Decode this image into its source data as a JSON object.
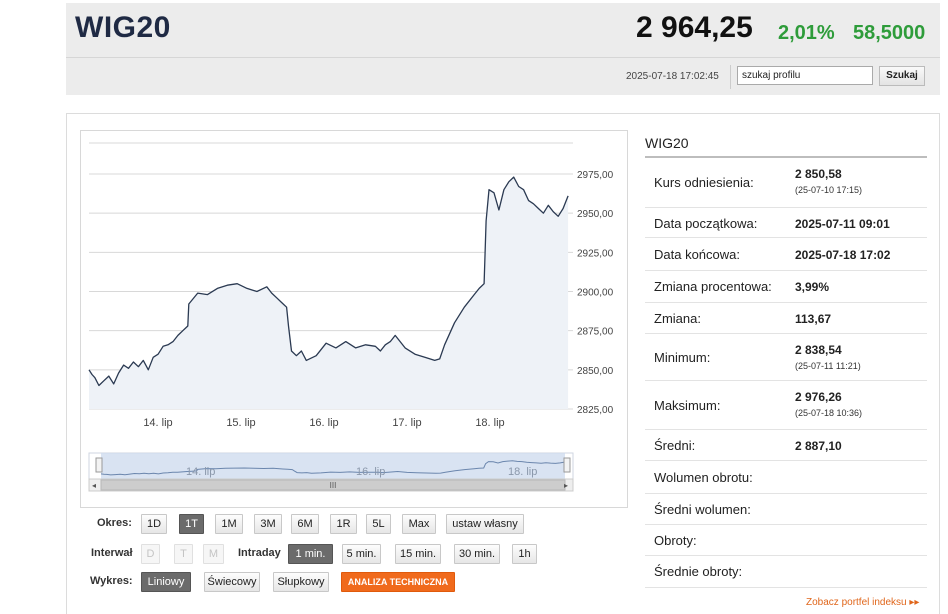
{
  "header": {
    "title": "WIG20",
    "price": "2 964,25",
    "change_pct": "2,01%",
    "change_abs": "58,5000",
    "timestamp": "2025-07-18 17:02:45",
    "search_value": "szukaj profilu",
    "search_button": "Szukaj",
    "change_color": "#2e9c3a"
  },
  "chart_data": {
    "type": "line",
    "title": "",
    "xlabel": "",
    "ylabel": "",
    "x_ticks": [
      "14. lip",
      "15. lip",
      "16. lip",
      "17. lip",
      "18. lip"
    ],
    "y_ticks": [
      "2975,00",
      "2950,00",
      "2925,00",
      "2900,00",
      "2875,00",
      "2850,00",
      "2825,00"
    ],
    "ylim": [
      2825,
      2975
    ],
    "grid": true,
    "series": [
      {
        "x": [
          0,
          0.03,
          0.06,
          0.1,
          0.15,
          0.2,
          0.25,
          0.3,
          0.35,
          0.4,
          0.45,
          0.5,
          0.55,
          0.6,
          0.65,
          0.7,
          0.75,
          0.8,
          0.85,
          0.9,
          0.95,
          1.0,
          1.01,
          1.1,
          1.2,
          1.3,
          1.4,
          1.5,
          1.6,
          1.7,
          1.8,
          1.85,
          1.9,
          1.95,
          2.0,
          2.02,
          2.05,
          2.1,
          2.15,
          2.2,
          2.3,
          2.4,
          2.5,
          2.6,
          2.7,
          2.8,
          2.9,
          2.95,
          3.0,
          3.05,
          3.1,
          3.2,
          3.3,
          3.4,
          3.5,
          3.55,
          3.6,
          3.7,
          3.8,
          3.9,
          3.95,
          4.0,
          4.02,
          4.05,
          4.1,
          4.15,
          4.2,
          4.25,
          4.3,
          4.35,
          4.4,
          4.45,
          4.5,
          4.55,
          4.6,
          4.65,
          4.7,
          4.75,
          4.8,
          4.85
        ],
        "values": [
          2850,
          2847,
          2845,
          2840,
          2843,
          2846,
          2841,
          2848,
          2853,
          2851,
          2855,
          2852,
          2856,
          2850,
          2858,
          2860,
          2865,
          2866,
          2868,
          2872,
          2875,
          2878,
          2892,
          2899,
          2898,
          2902,
          2904,
          2905,
          2902,
          2900,
          2903,
          2899,
          2896,
          2893,
          2890,
          2878,
          2862,
          2859,
          2862,
          2856,
          2859,
          2867,
          2864,
          2868,
          2864,
          2866,
          2865,
          2862,
          2866,
          2868,
          2872,
          2864,
          2860,
          2858,
          2856,
          2857,
          2866,
          2880,
          2890,
          2898,
          2902,
          2905,
          2945,
          2965,
          2963,
          2952,
          2965,
          2970,
          2973,
          2967,
          2965,
          2958,
          2956,
          2953,
          2950,
          2955,
          2951,
          2948,
          2953,
          2961
        ]
      }
    ],
    "navigator": {
      "x_ticks": [
        "14. lip",
        "16. lip",
        "18. lip"
      ],
      "scroll_label": "III"
    }
  },
  "controls": {
    "okres_label": "Okres:",
    "okres": [
      "1D",
      "1T",
      "1M",
      "3M",
      "6M",
      "1R",
      "5L",
      "Max",
      "ustaw własny"
    ],
    "interwal_label": "Interwał",
    "interwal": [
      "D",
      "T",
      "M"
    ],
    "intraday_label": "Intraday",
    "intraday": [
      "1 min.",
      "5 min.",
      "15 min.",
      "30 min.",
      "1h"
    ],
    "wykres_label": "Wykres:",
    "wykres": [
      "Liniowy",
      "Świecowy",
      "Słupkowy"
    ],
    "analiza": "ANALIZA TECHNICZNA",
    "accent_color": "#f06a1c"
  },
  "stats": {
    "title": "WIG20",
    "rows": [
      {
        "label": "Kurs odniesienia:",
        "value": "2 850,58",
        "sub": "(25-07-10 17:15)"
      },
      {
        "label": "Data początkowa:",
        "value": "2025-07-11 09:01",
        "sub": ""
      },
      {
        "label": "Data końcowa:",
        "value": "2025-07-18 17:02",
        "sub": ""
      },
      {
        "label": "Zmiana procentowa:",
        "value": "3,99%",
        "sub": ""
      },
      {
        "label": "Zmiana:",
        "value": "113,67",
        "sub": ""
      },
      {
        "label": "Minimum:",
        "value": "2 838,54",
        "sub": "(25-07-11 11:21)"
      },
      {
        "label": "Maksimum:",
        "value": "2 976,26",
        "sub": "(25-07-18 10:36)"
      },
      {
        "label": "Średni:",
        "value": "2 887,10",
        "sub": ""
      },
      {
        "label": "Wolumen obrotu:",
        "value": "",
        "sub": ""
      },
      {
        "label": "Średni wolumen:",
        "value": "",
        "sub": ""
      },
      {
        "label": "Obroty:",
        "value": "",
        "sub": ""
      },
      {
        "label": "Średnie obroty:",
        "value": "",
        "sub": ""
      }
    ],
    "more_link": "Zobacz portfel indeksu ▸▸"
  }
}
